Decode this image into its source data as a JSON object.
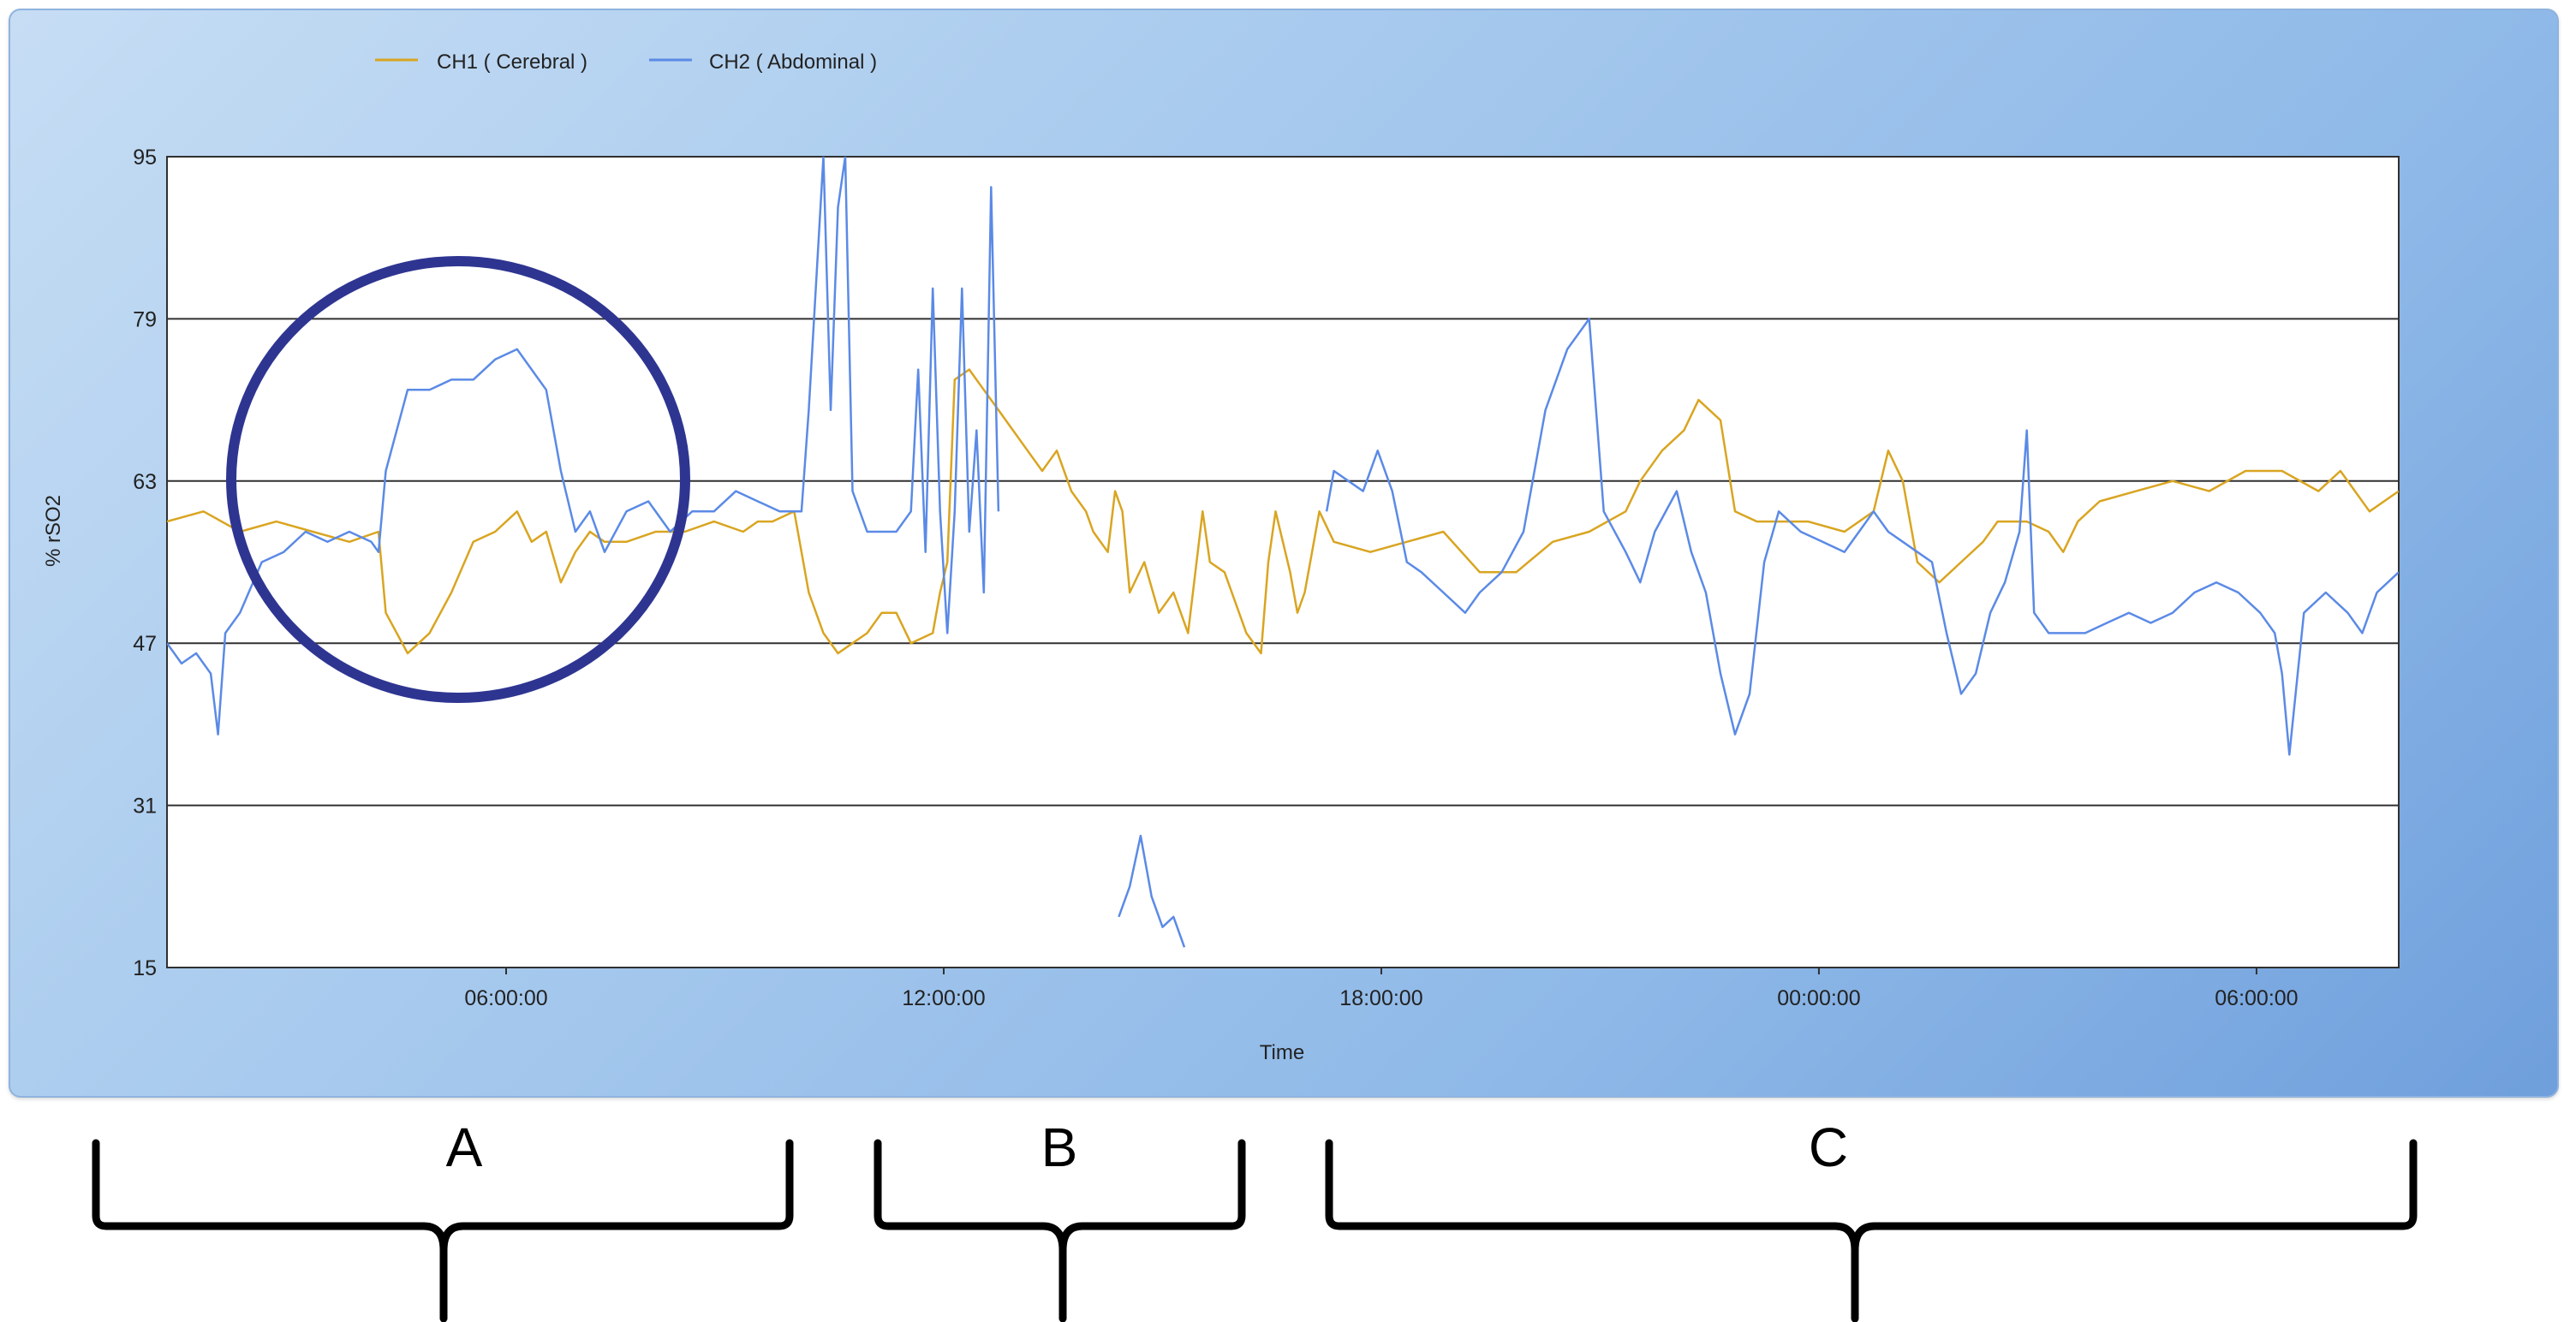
{
  "chart_data": {
    "type": "line",
    "title": "",
    "xlabel": "Time",
    "ylabel": "% rSO2",
    "ylim": [
      15,
      95
    ],
    "yticks": [
      15,
      31,
      47,
      63,
      79,
      95
    ],
    "x_unit": "hours since first tick minus 6 (approx)",
    "xlim": [
      0,
      30.6
    ],
    "xticks": [
      {
        "x": 4.65,
        "label": "06:00:00"
      },
      {
        "x": 10.65,
        "label": "12:00:00"
      },
      {
        "x": 16.65,
        "label": "18:00:00"
      },
      {
        "x": 22.65,
        "label": "00:00:00"
      },
      {
        "x": 28.65,
        "label": "06:00:00"
      }
    ],
    "grid": true,
    "legend": "top-left",
    "series": [
      {
        "name": "CH1 ( Cerebral )",
        "color": "#d9a521",
        "points": [
          [
            0.0,
            59
          ],
          [
            0.5,
            60
          ],
          [
            1.0,
            58
          ],
          [
            1.5,
            59
          ],
          [
            2.0,
            58
          ],
          [
            2.5,
            57
          ],
          [
            2.9,
            58
          ],
          [
            3.0,
            50
          ],
          [
            3.3,
            46
          ],
          [
            3.6,
            48
          ],
          [
            3.9,
            52
          ],
          [
            4.2,
            57
          ],
          [
            4.5,
            58
          ],
          [
            4.8,
            60
          ],
          [
            5.0,
            57
          ],
          [
            5.2,
            58
          ],
          [
            5.4,
            53
          ],
          [
            5.6,
            56
          ],
          [
            5.8,
            58
          ],
          [
            6.0,
            57
          ],
          [
            6.3,
            57
          ],
          [
            6.7,
            58
          ],
          [
            7.1,
            58
          ],
          [
            7.5,
            59
          ],
          [
            7.9,
            58
          ],
          [
            8.1,
            59
          ],
          [
            8.3,
            59
          ],
          [
            8.6,
            60
          ],
          [
            8.8,
            52
          ],
          [
            9.0,
            48
          ],
          [
            9.2,
            46
          ],
          [
            9.4,
            47
          ],
          [
            9.6,
            48
          ],
          [
            9.8,
            50
          ],
          [
            10.0,
            50
          ],
          [
            10.2,
            47
          ],
          [
            10.5,
            48
          ],
          [
            10.6,
            52
          ],
          [
            10.7,
            55
          ],
          [
            10.8,
            73
          ],
          [
            11.0,
            74
          ],
          [
            11.2,
            72
          ],
          [
            11.4,
            70
          ],
          [
            11.6,
            68
          ],
          [
            11.8,
            66
          ],
          [
            12.0,
            64
          ],
          [
            12.2,
            66
          ],
          [
            12.4,
            62
          ],
          [
            12.6,
            60
          ],
          [
            12.7,
            58
          ],
          [
            12.9,
            56
          ],
          [
            13.0,
            62
          ],
          [
            13.1,
            60
          ],
          [
            13.2,
            52
          ],
          [
            13.4,
            55
          ],
          [
            13.6,
            50
          ],
          [
            13.8,
            52
          ],
          [
            14.0,
            48
          ],
          [
            14.2,
            60
          ],
          [
            14.3,
            55
          ],
          [
            14.5,
            54
          ],
          [
            14.6,
            52
          ],
          [
            14.8,
            48
          ],
          [
            15.0,
            46
          ],
          [
            15.1,
            55
          ],
          [
            15.2,
            60
          ],
          [
            15.4,
            54
          ],
          [
            15.5,
            50
          ],
          [
            15.6,
            52
          ],
          [
            15.7,
            56
          ],
          [
            15.8,
            60
          ],
          [
            16.0,
            57
          ],
          [
            16.5,
            56
          ],
          [
            17.0,
            57
          ],
          [
            17.5,
            58
          ],
          [
            18.0,
            54
          ],
          [
            18.5,
            54
          ],
          [
            19.0,
            57
          ],
          [
            19.5,
            58
          ],
          [
            20.0,
            60
          ],
          [
            20.2,
            63
          ],
          [
            20.5,
            66
          ],
          [
            20.8,
            68
          ],
          [
            21.0,
            71
          ],
          [
            21.3,
            69
          ],
          [
            21.5,
            60
          ],
          [
            21.8,
            59
          ],
          [
            22.0,
            59
          ],
          [
            22.5,
            59
          ],
          [
            23.0,
            58
          ],
          [
            23.4,
            60
          ],
          [
            23.6,
            66
          ],
          [
            23.8,
            63
          ],
          [
            24.0,
            55
          ],
          [
            24.3,
            53
          ],
          [
            24.6,
            55
          ],
          [
            24.9,
            57
          ],
          [
            25.1,
            59
          ],
          [
            25.5,
            59
          ],
          [
            25.8,
            58
          ],
          [
            26.0,
            56
          ],
          [
            26.2,
            59
          ],
          [
            26.5,
            61
          ],
          [
            27.0,
            62
          ],
          [
            27.5,
            63
          ],
          [
            28.0,
            62
          ],
          [
            28.5,
            64
          ],
          [
            29.0,
            64
          ],
          [
            29.5,
            62
          ],
          [
            29.8,
            64
          ],
          [
            30.0,
            62
          ],
          [
            30.2,
            60
          ],
          [
            30.6,
            62
          ]
        ]
      },
      {
        "name": "CH2 ( Abdominal )",
        "color": "#5b8ae6",
        "points": [
          [
            0.0,
            47
          ],
          [
            0.2,
            45
          ],
          [
            0.4,
            46
          ],
          [
            0.6,
            44
          ],
          [
            0.7,
            38
          ],
          [
            0.8,
            48
          ],
          [
            1.0,
            50
          ],
          [
            1.3,
            55
          ],
          [
            1.6,
            56
          ],
          [
            1.9,
            58
          ],
          [
            2.2,
            57
          ],
          [
            2.5,
            58
          ],
          [
            2.8,
            57
          ],
          [
            2.9,
            56
          ],
          [
            3.0,
            64
          ],
          [
            3.3,
            72
          ],
          [
            3.6,
            72
          ],
          [
            3.9,
            73
          ],
          [
            4.2,
            73
          ],
          [
            4.5,
            75
          ],
          [
            4.8,
            76
          ],
          [
            5.0,
            74
          ],
          [
            5.2,
            72
          ],
          [
            5.4,
            64
          ],
          [
            5.6,
            58
          ],
          [
            5.8,
            60
          ],
          [
            6.0,
            56
          ],
          [
            6.3,
            60
          ],
          [
            6.6,
            61
          ],
          [
            6.9,
            58
          ],
          [
            7.2,
            60
          ],
          [
            7.5,
            60
          ],
          [
            7.8,
            62
          ],
          [
            8.1,
            61
          ],
          [
            8.4,
            60
          ],
          [
            8.7,
            60
          ],
          [
            8.8,
            70
          ],
          [
            9.0,
            95
          ],
          [
            9.1,
            70
          ],
          [
            9.2,
            90
          ],
          [
            9.3,
            95
          ],
          [
            9.4,
            62
          ],
          [
            9.6,
            58
          ],
          [
            9.8,
            58
          ],
          [
            10.0,
            58
          ],
          [
            10.2,
            60
          ],
          [
            10.3,
            74
          ],
          [
            10.4,
            56
          ],
          [
            10.5,
            82
          ],
          [
            10.6,
            60
          ],
          [
            10.7,
            48
          ],
          [
            10.8,
            60
          ],
          [
            10.9,
            82
          ],
          [
            11.0,
            58
          ],
          [
            11.1,
            68
          ],
          [
            11.2,
            52
          ],
          [
            11.3,
            92
          ],
          [
            11.4,
            60
          ]
        ]
      },
      {
        "name": "CH2 ( Abdominal )",
        "color": "#5b8ae6",
        "points": [
          [
            13.05,
            20
          ],
          [
            13.2,
            23
          ],
          [
            13.35,
            28
          ],
          [
            13.5,
            22
          ],
          [
            13.65,
            19
          ],
          [
            13.8,
            20
          ],
          [
            13.95,
            17
          ]
        ]
      },
      {
        "name": "CH2 ( Abdominal )",
        "color": "#5b8ae6",
        "points": [
          [
            15.9,
            60
          ],
          [
            16.0,
            64
          ],
          [
            16.2,
            63
          ],
          [
            16.4,
            62
          ],
          [
            16.6,
            66
          ],
          [
            16.8,
            62
          ],
          [
            17.0,
            55
          ],
          [
            17.2,
            54
          ],
          [
            17.5,
            52
          ],
          [
            17.8,
            50
          ],
          [
            18.0,
            52
          ],
          [
            18.3,
            54
          ],
          [
            18.6,
            58
          ],
          [
            18.9,
            70
          ],
          [
            19.2,
            76
          ],
          [
            19.5,
            79
          ],
          [
            19.7,
            60
          ],
          [
            20.0,
            56
          ],
          [
            20.2,
            53
          ],
          [
            20.4,
            58
          ],
          [
            20.7,
            62
          ],
          [
            20.9,
            56
          ],
          [
            21.1,
            52
          ],
          [
            21.3,
            44
          ],
          [
            21.5,
            38
          ],
          [
            21.7,
            42
          ],
          [
            21.9,
            55
          ],
          [
            22.1,
            60
          ],
          [
            22.4,
            58
          ],
          [
            22.7,
            57
          ],
          [
            23.0,
            56
          ],
          [
            23.2,
            58
          ],
          [
            23.4,
            60
          ],
          [
            23.6,
            58
          ],
          [
            23.8,
            57
          ],
          [
            24.0,
            56
          ],
          [
            24.2,
            55
          ],
          [
            24.4,
            48
          ],
          [
            24.6,
            42
          ],
          [
            24.8,
            44
          ],
          [
            25.0,
            50
          ],
          [
            25.2,
            53
          ],
          [
            25.4,
            58
          ],
          [
            25.5,
            68
          ],
          [
            25.6,
            50
          ],
          [
            25.8,
            48
          ],
          [
            26.0,
            48
          ],
          [
            26.3,
            48
          ],
          [
            26.6,
            49
          ],
          [
            26.9,
            50
          ],
          [
            27.2,
            49
          ],
          [
            27.5,
            50
          ],
          [
            27.8,
            52
          ],
          [
            28.1,
            53
          ],
          [
            28.4,
            52
          ],
          [
            28.7,
            50
          ],
          [
            28.9,
            48
          ],
          [
            29.0,
            44
          ],
          [
            29.1,
            36
          ],
          [
            29.3,
            50
          ],
          [
            29.6,
            52
          ],
          [
            29.9,
            50
          ],
          [
            30.1,
            48
          ],
          [
            30.3,
            52
          ],
          [
            30.6,
            54
          ]
        ]
      }
    ]
  },
  "panel_colors": {
    "plot_bg": "#ffffff",
    "grid": "#303030",
    "circle": "#2e3591"
  },
  "annotations": {
    "circle_label": "",
    "brackets": [
      {
        "label": "A"
      },
      {
        "label": "B"
      },
      {
        "label": "C"
      }
    ]
  }
}
